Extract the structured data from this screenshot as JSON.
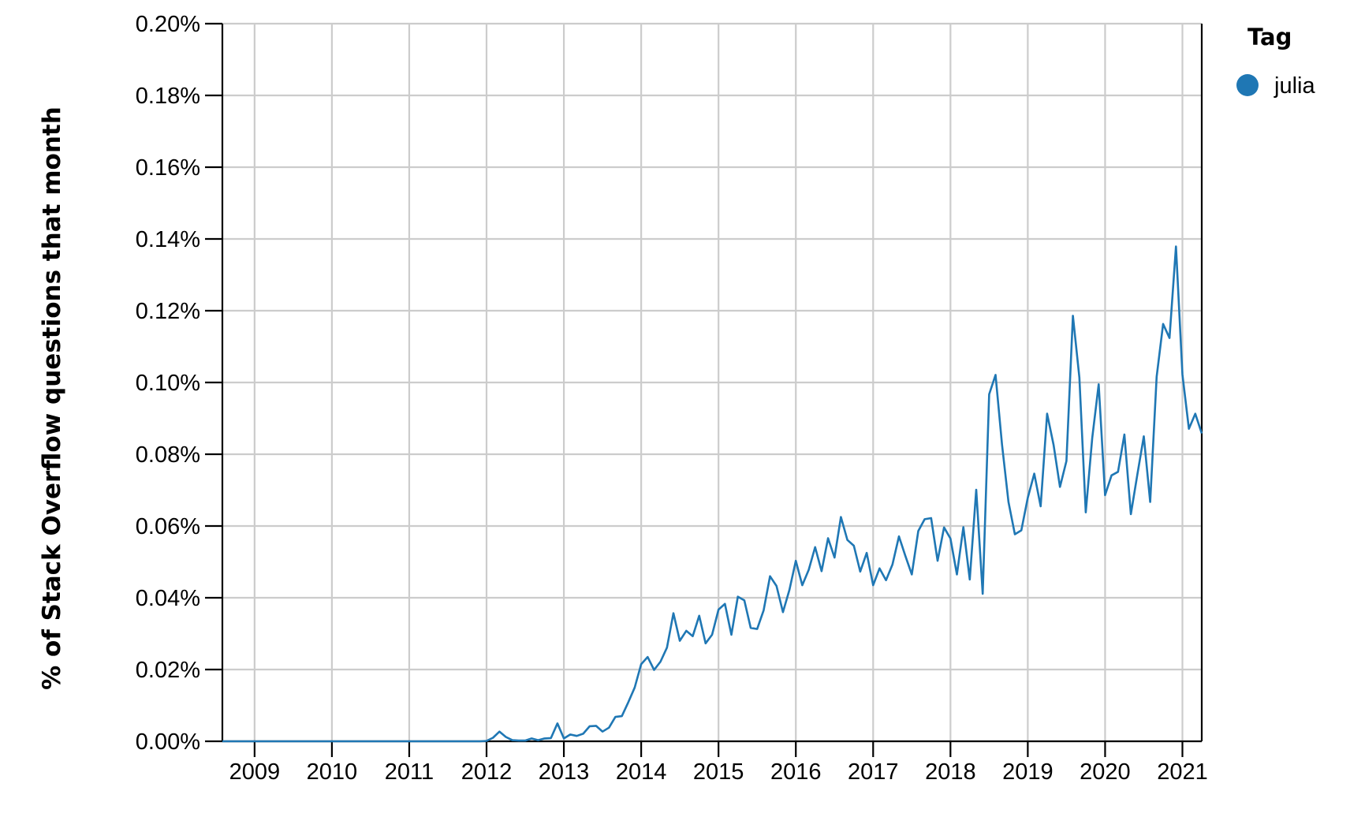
{
  "chart_data": {
    "type": "line",
    "xlabel": "",
    "ylabel": "% of Stack Overflow questions that month",
    "x_tick_labels": [
      "2009",
      "2010",
      "2011",
      "2012",
      "2013",
      "2014",
      "2015",
      "2016",
      "2017",
      "2018",
      "2019",
      "2020",
      "2021"
    ],
    "y_tick_labels": [
      "0.00%",
      "0.02%",
      "0.04%",
      "0.06%",
      "0.08%",
      "0.10%",
      "0.12%",
      "0.14%",
      "0.16%",
      "0.18%",
      "0.20%"
    ],
    "x_range": [
      "2008-08",
      "2021-04"
    ],
    "ylim": [
      0,
      0.2
    ],
    "grid": true,
    "legend": {
      "title": "Tag",
      "position": "right-top"
    },
    "series": [
      {
        "name": "julia",
        "color": "#1f77b4",
        "x": [
          "2008-08",
          "2008-09",
          "2008-10",
          "2008-11",
          "2008-12",
          "2009-01",
          "2009-02",
          "2009-03",
          "2009-04",
          "2009-05",
          "2009-06",
          "2009-07",
          "2009-08",
          "2009-09",
          "2009-10",
          "2009-11",
          "2009-12",
          "2010-01",
          "2010-02",
          "2010-03",
          "2010-04",
          "2010-05",
          "2010-06",
          "2010-07",
          "2010-08",
          "2010-09",
          "2010-10",
          "2010-11",
          "2010-12",
          "2011-01",
          "2011-02",
          "2011-03",
          "2011-04",
          "2011-05",
          "2011-06",
          "2011-07",
          "2011-08",
          "2011-09",
          "2011-10",
          "2011-11",
          "2011-12",
          "2012-01",
          "2012-02",
          "2012-03",
          "2012-04",
          "2012-05",
          "2012-06",
          "2012-07",
          "2012-08",
          "2012-09",
          "2012-10",
          "2012-11",
          "2012-12",
          "2013-01",
          "2013-02",
          "2013-03",
          "2013-04",
          "2013-05",
          "2013-06",
          "2013-07",
          "2013-08",
          "2013-09",
          "2013-10",
          "2013-11",
          "2013-12",
          "2014-01",
          "2014-02",
          "2014-03",
          "2014-04",
          "2014-05",
          "2014-06",
          "2014-07",
          "2014-08",
          "2014-09",
          "2014-10",
          "2014-11",
          "2014-12",
          "2015-01",
          "2015-02",
          "2015-03",
          "2015-04",
          "2015-05",
          "2015-06",
          "2015-07",
          "2015-08",
          "2015-09",
          "2015-10",
          "2015-11",
          "2015-12",
          "2016-01",
          "2016-02",
          "2016-03",
          "2016-04",
          "2016-05",
          "2016-06",
          "2016-07",
          "2016-08",
          "2016-09",
          "2016-10",
          "2016-11",
          "2016-12",
          "2017-01",
          "2017-02",
          "2017-03",
          "2017-04",
          "2017-05",
          "2017-06",
          "2017-07",
          "2017-08",
          "2017-09",
          "2017-10",
          "2017-11",
          "2017-12",
          "2018-01",
          "2018-02",
          "2018-03",
          "2018-04",
          "2018-05",
          "2018-06",
          "2018-07",
          "2018-08",
          "2018-09",
          "2018-10",
          "2018-11",
          "2018-12",
          "2019-01",
          "2019-02",
          "2019-03",
          "2019-04",
          "2019-05",
          "2019-06",
          "2019-07",
          "2019-08",
          "2019-09",
          "2019-10",
          "2019-11",
          "2019-12",
          "2020-01",
          "2020-02",
          "2020-03",
          "2020-04",
          "2020-05",
          "2020-06",
          "2020-07",
          "2020-08",
          "2020-09",
          "2020-10",
          "2020-11",
          "2020-12",
          "2021-01",
          "2021-02",
          "2021-03",
          "2021-04"
        ],
        "values": [
          0,
          0,
          0,
          0,
          0,
          0,
          0,
          0,
          0,
          0,
          0,
          0,
          0,
          0,
          0,
          0,
          0,
          0,
          0,
          0,
          0,
          0,
          0,
          0,
          0,
          0,
          0,
          0,
          0,
          0,
          0,
          0,
          0,
          0,
          0,
          0,
          0,
          0,
          0,
          0,
          0,
          0.0001,
          0.001,
          0.0027,
          0.0012,
          0.0003,
          0.0002,
          0.0002,
          0.0008,
          0.0003,
          0.0008,
          0.0009,
          0.005,
          0.0008,
          0.0019,
          0.0015,
          0.0021,
          0.0042,
          0.0043,
          0.0027,
          0.0038,
          0.0068,
          0.007,
          0.0109,
          0.015,
          0.0215,
          0.0235,
          0.0199,
          0.0222,
          0.0261,
          0.0357,
          0.028,
          0.0308,
          0.0293,
          0.035,
          0.0273,
          0.0297,
          0.0367,
          0.0383,
          0.0297,
          0.0403,
          0.0393,
          0.0316,
          0.0313,
          0.0365,
          0.046,
          0.0433,
          0.036,
          0.0422,
          0.0503,
          0.0435,
          0.0478,
          0.0541,
          0.0474,
          0.0566,
          0.0512,
          0.0625,
          0.0561,
          0.0545,
          0.0473,
          0.0525,
          0.0435,
          0.0482,
          0.0449,
          0.0493,
          0.0571,
          0.0517,
          0.0465,
          0.0586,
          0.0619,
          0.0622,
          0.0503,
          0.0596,
          0.0565,
          0.0465,
          0.0597,
          0.0451,
          0.0701,
          0.0411,
          0.0967,
          0.1021,
          0.0827,
          0.0667,
          0.0577,
          0.0588,
          0.0679,
          0.0746,
          0.0655,
          0.0913,
          0.0826,
          0.0709,
          0.0781,
          0.1186,
          0.1014,
          0.0638,
          0.0845,
          0.0995,
          0.0686,
          0.0741,
          0.0751,
          0.0855,
          0.0633,
          0.0743,
          0.085,
          0.0667,
          0.1016,
          0.1163,
          0.1124,
          0.1379,
          0.1022,
          0.0871,
          0.0913,
          0.0858
        ]
      }
    ]
  }
}
